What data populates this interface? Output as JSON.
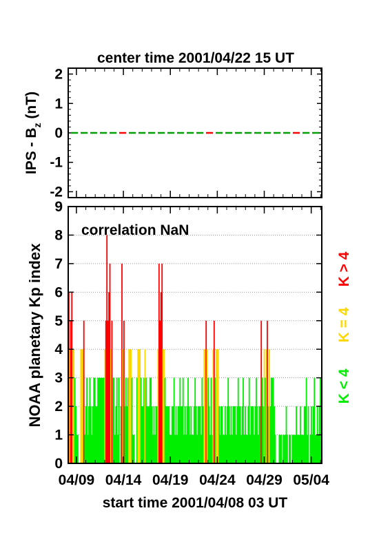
{
  "chart_data": [
    {
      "type": "line",
      "title": "center time 2001/04/22 15 UT",
      "ylabel_main": "IPS - B",
      "ylabel_sub": "z",
      "ylabel_unit": " (nT)",
      "ylim": [
        -2.2,
        2.2
      ],
      "yticks": [
        "2",
        "1",
        "0",
        "-1",
        "-2"
      ],
      "series": [
        {
          "x": [
            0,
            1
          ],
          "y": [
            0,
            0
          ],
          "colors": [
            "#00a000",
            "#ff0000"
          ]
        }
      ]
    },
    {
      "type": "bar",
      "ylabel": "NOAA planetary Kp index",
      "xlabel": "start time 2001/04/08 03 UT",
      "annotation": "correlation NaN",
      "ylim": [
        0,
        9
      ],
      "yticks": [
        "0",
        "1",
        "2",
        "3",
        "4",
        "5",
        "6",
        "7",
        "8",
        "9"
      ],
      "xticks": [
        "04/09",
        "04/14",
        "04/19",
        "04/24",
        "04/29",
        "05/04"
      ],
      "xtick_days": [
        0.875,
        5.875,
        10.875,
        15.875,
        20.875,
        25.875
      ],
      "xlim_days": [
        0,
        27
      ],
      "grid": true,
      "legend": [
        {
          "label": "K > 4",
          "color": "#ff0000"
        },
        {
          "label": "K = 4",
          "color": "#ffd700"
        },
        {
          "label": "K < 4",
          "color": "#00ee00"
        }
      ],
      "colors": {
        "high": "#ff0000",
        "mid": "#ffd700",
        "low": "#00ee00"
      },
      "kp": [
        6,
        4,
        5,
        6,
        4,
        4,
        3,
        2,
        1,
        1,
        0,
        0,
        4,
        4,
        4,
        5,
        1,
        2,
        3,
        1,
        2,
        3,
        2,
        1,
        2,
        3,
        3,
        2,
        2,
        3,
        3,
        3,
        3,
        3,
        3,
        3,
        4,
        5,
        8,
        5,
        6,
        7,
        4,
        5,
        3,
        3,
        1,
        2,
        3,
        1,
        3,
        0,
        2,
        7,
        4,
        5,
        2,
        3,
        2,
        3,
        4,
        4,
        4,
        3,
        1,
        1,
        0,
        0,
        3,
        4,
        4,
        4,
        3,
        2,
        2,
        3,
        4,
        3,
        2,
        2,
        2,
        3,
        3,
        2,
        1,
        2,
        1,
        2,
        2,
        4,
        7,
        5,
        6,
        7,
        4,
        4,
        3,
        2,
        2,
        2,
        2,
        1,
        1,
        2,
        2,
        3,
        1,
        2,
        1,
        2,
        2,
        3,
        2,
        2,
        3,
        1,
        2,
        1,
        2,
        3,
        2,
        1,
        2,
        1,
        1,
        2,
        3,
        2,
        1,
        2,
        2,
        2,
        1,
        3,
        2,
        4,
        4,
        5,
        4,
        3,
        2,
        1,
        3,
        1,
        4,
        5,
        3,
        4,
        4,
        4,
        2,
        1,
        2,
        2,
        1,
        1,
        2,
        1,
        2,
        3,
        2,
        1,
        2,
        1,
        2,
        2,
        2,
        1,
        2,
        3,
        2,
        2,
        1,
        2,
        3,
        1,
        2,
        1,
        1,
        2,
        3,
        1,
        2,
        2,
        2,
        1,
        2,
        3,
        2,
        1,
        2,
        2,
        5,
        3,
        2,
        4,
        3,
        4,
        5,
        2,
        4,
        2,
        3,
        3,
        3,
        2,
        1,
        0,
        0,
        0,
        1,
        1,
        1,
        0,
        1,
        1,
        1,
        2,
        1,
        0,
        1,
        1,
        0,
        1,
        1,
        1,
        1,
        2,
        1,
        1,
        1,
        2,
        1,
        1,
        1,
        2,
        2,
        3,
        1,
        2,
        0,
        1,
        2,
        1,
        2,
        3,
        1,
        1,
        2,
        1,
        2,
        3,
        3
      ]
    }
  ]
}
